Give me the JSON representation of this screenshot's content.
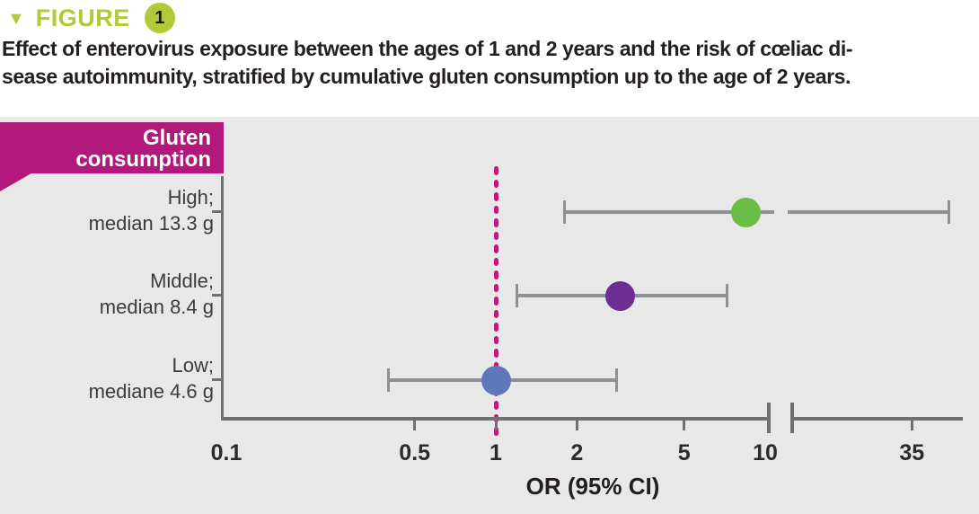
{
  "figure_header": {
    "marker": "▼",
    "label": "FIGURE",
    "number": "1"
  },
  "title_lines": [
    "Effect of enterovirus exposure between the ages of 1 and 2 years and the risk of cœliac di-",
    "sease autoimmunity, stratified by cumulative gluten consumption up to the age of 2 years."
  ],
  "chart_data": {
    "type": "scatter",
    "subtype": "forest-plot-dot-with-95ci",
    "panel_header_lines": [
      "Gluten",
      "consumption"
    ],
    "xlabel": "OR (95% CI)",
    "x_scale": "log10",
    "x_ticks": [
      0.1,
      0.5,
      1,
      2,
      5,
      10,
      35
    ],
    "x_tick_labels": [
      "0.1",
      "0.5",
      "1",
      "2",
      "5",
      "10",
      "35"
    ],
    "xlim": [
      0.1,
      55
    ],
    "axis_break_between": [
      10,
      35
    ],
    "reference_line_or": 1,
    "grid": "off",
    "rows": [
      {
        "label_lines": [
          "High;",
          "median 13.3 g"
        ],
        "or": 8.5,
        "ci95": [
          1.8,
          48
        ],
        "marker_color": "#6abd45",
        "ci_crosses_axis_break": true
      },
      {
        "label_lines": [
          "Middle;",
          "median 8.4 g"
        ],
        "or": 2.9,
        "ci95": [
          1.2,
          7.2
        ],
        "marker_color": "#6c2e90",
        "ci_crosses_axis_break": false
      },
      {
        "label_lines": [
          "Low;",
          "mediane 4.6 g"
        ],
        "or": 1.0,
        "ci95": [
          0.4,
          2.8
        ],
        "marker_color": "#5d77b9",
        "ci_crosses_axis_break": false
      }
    ],
    "colors": {
      "figure_accent_green": "#b1ca36",
      "panel_background": "#e9e8e9",
      "header_magenta": "#b3187b",
      "reference_line_magenta": "#c2187c",
      "axis_gray": "#6f7073",
      "ci_gray": "#8e9093",
      "text_dark": "#231f20"
    }
  }
}
